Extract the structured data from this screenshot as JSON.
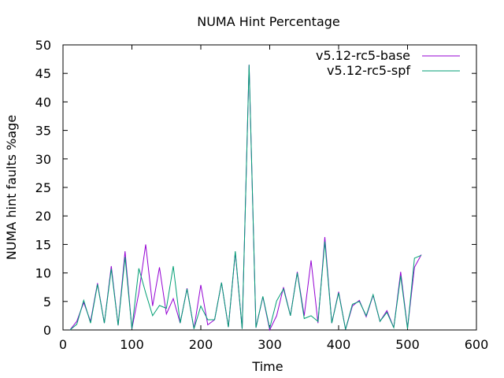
{
  "chart_data": {
    "type": "line",
    "title": "NUMA Hint Percentage",
    "xlabel": "Time",
    "ylabel": "NUMA hint faults %age",
    "xlim": [
      0,
      600
    ],
    "ylim": [
      0,
      50
    ],
    "xticks": [
      0,
      100,
      200,
      300,
      400,
      500,
      600
    ],
    "yticks": [
      0,
      5,
      10,
      15,
      20,
      25,
      30,
      35,
      40,
      45,
      50
    ],
    "grid": false,
    "legend_position": "top-right",
    "x": [
      10,
      20,
      30,
      40,
      50,
      60,
      70,
      80,
      90,
      100,
      110,
      120,
      130,
      140,
      150,
      160,
      170,
      180,
      190,
      200,
      210,
      220,
      230,
      240,
      250,
      260,
      270,
      280,
      290,
      300,
      310,
      320,
      330,
      340,
      350,
      360,
      370,
      380,
      390,
      400,
      410,
      420,
      430,
      440,
      450,
      460,
      470,
      480,
      490,
      500,
      510,
      520
    ],
    "series": [
      {
        "name": "v5.12-rc5-base",
        "color": "#9400d3",
        "values": [
          0,
          1.5,
          4.8,
          1.5,
          8.2,
          1.2,
          11.2,
          0.8,
          13.8,
          0.2,
          6.5,
          15.0,
          4.2,
          11.0,
          2.8,
          5.5,
          1.2,
          7.3,
          0.2,
          7.9,
          0.9,
          1.8,
          8.3,
          0.5,
          13.6,
          0.2,
          46.5,
          0.4,
          5.8,
          0.0,
          2.5,
          7.5,
          2.5,
          10.2,
          2.5,
          12.2,
          1.2,
          16.3,
          1.2,
          6.7,
          0.1,
          4.2,
          5.2,
          2.3,
          6.1,
          1.5,
          3.4,
          0.4,
          10.2,
          0.3,
          11.0,
          13.2
        ]
      },
      {
        "name": "v5.12-rc5-spf",
        "color": "#009e73",
        "values": [
          0,
          1.0,
          5.2,
          1.2,
          8.0,
          1.2,
          10.7,
          0.8,
          12.8,
          0.2,
          10.8,
          6.5,
          2.5,
          4.3,
          3.8,
          11.2,
          1.2,
          7.2,
          0.2,
          4.2,
          1.8,
          1.8,
          8.3,
          0.5,
          13.8,
          0.2,
          46.5,
          0.4,
          5.9,
          0.3,
          5.1,
          7.2,
          2.5,
          10.0,
          2.0,
          2.5,
          1.5,
          15.5,
          1.2,
          6.5,
          0.1,
          4.5,
          5.0,
          2.5,
          6.2,
          1.5,
          3.1,
          0.4,
          9.5,
          0.2,
          12.6,
          13.1
        ]
      }
    ]
  }
}
